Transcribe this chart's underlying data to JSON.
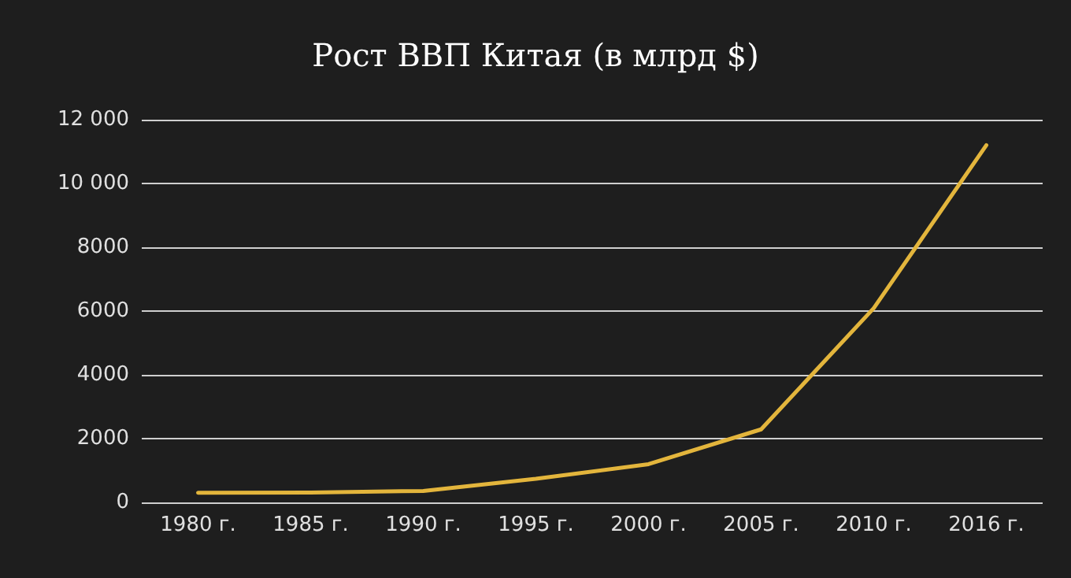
{
  "chart_data": {
    "type": "line",
    "title": "Рост ВВП Китая (в млрд $)",
    "categories": [
      "1980 г.",
      "1985 г.",
      "1990 г.",
      "1995 г.",
      "2000 г.",
      "2005 г.",
      "2010 г.",
      "2016 г."
    ],
    "series": [
      {
        "color": "#e3b53c",
        "values": [
          300,
          310,
          360,
          740,
          1200,
          2290,
          6090,
          11200
        ]
      }
    ],
    "ylim": [
      0,
      12000
    ],
    "yticks": [
      0,
      2000,
      4000,
      {
        "value": 6000,
        "label": "6000"
      },
      {
        "value": 8000,
        "label": "8000"
      },
      {
        "value": 10000,
        "label": "10 000"
      },
      {
        "value": 12000,
        "label": "12 000"
      }
    ],
    "grid": "y",
    "marker": "none",
    "line_style": "solid"
  }
}
